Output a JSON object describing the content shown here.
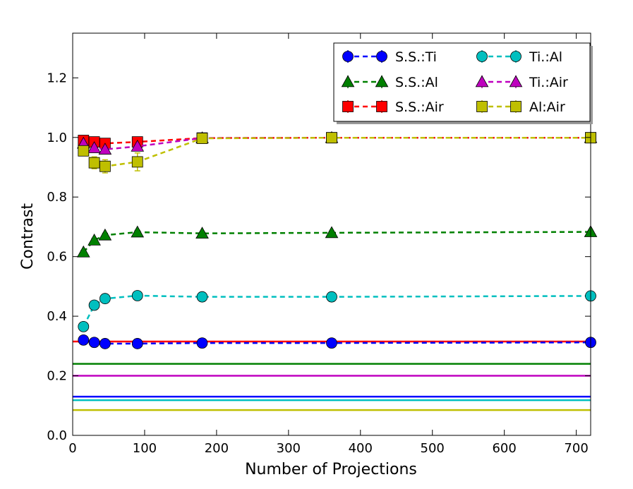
{
  "chart_data": {
    "type": "line",
    "title": "",
    "xlabel": "Number of Projections",
    "ylabel": "Contrast",
    "xlim": [
      0,
      720
    ],
    "ylim": [
      0.0,
      1.35
    ],
    "x_ticks": [
      0,
      100,
      200,
      300,
      400,
      500,
      600,
      700
    ],
    "x_tick_labels": [
      "0",
      "100",
      "200",
      "300",
      "400",
      "500",
      "600",
      "700"
    ],
    "y_ticks": [
      0.0,
      0.2,
      0.4,
      0.6,
      0.8,
      1.0,
      1.2
    ],
    "y_tick_labels": [
      "0.0",
      "0.2",
      "0.4",
      "0.6",
      "0.8",
      "1.0",
      "1.2"
    ],
    "grid": false,
    "legend_position": "top-right",
    "x": [
      15,
      30,
      45,
      90,
      180,
      360,
      720
    ],
    "series": [
      {
        "name": "S.S.:Ti",
        "color": "#0000ff",
        "marker": "circle",
        "values": [
          0.32,
          0.312,
          0.308,
          0.308,
          0.31,
          0.31,
          0.312
        ],
        "errors": [
          0.005,
          0.005,
          0.005,
          0.005,
          0.004,
          0.004,
          0.004
        ],
        "reference": 0.13
      },
      {
        "name": "S.S.:Al",
        "color": "#008000",
        "marker": "triangle",
        "values": [
          0.615,
          0.655,
          0.672,
          0.682,
          0.678,
          0.68,
          0.683
        ],
        "errors": [
          0.006,
          0.006,
          0.006,
          0.006,
          0.005,
          0.005,
          0.005
        ],
        "reference": 0.24
      },
      {
        "name": "S.S.:Air",
        "color": "#ff0000",
        "marker": "square",
        "values": [
          0.99,
          0.985,
          0.98,
          0.985,
          0.998,
          0.999,
          0.999
        ],
        "errors": [
          0.006,
          0.006,
          0.006,
          0.006,
          0.003,
          0.002,
          0.002
        ],
        "reference": 0.315
      },
      {
        "name": "Ti.:Al",
        "color": "#00bfbf",
        "marker": "circle",
        "values": [
          0.365,
          0.437,
          0.459,
          0.469,
          0.465,
          0.465,
          0.468
        ],
        "errors": [
          0.006,
          0.006,
          0.006,
          0.006,
          0.005,
          0.005,
          0.005
        ],
        "reference": 0.118
      },
      {
        "name": "Ti.:Air",
        "color": "#bf00bf",
        "marker": "triangle",
        "values": [
          0.98,
          0.965,
          0.96,
          0.97,
          0.998,
          0.999,
          0.999
        ],
        "errors": [
          0.008,
          0.008,
          0.008,
          0.008,
          0.003,
          0.002,
          0.002
        ],
        "reference": 0.2
      },
      {
        "name": "Al:Air",
        "color": "#bfbf00",
        "marker": "square",
        "values": [
          0.955,
          0.915,
          0.903,
          0.918,
          0.997,
          0.999,
          0.999
        ],
        "errors": [
          0.015,
          0.02,
          0.022,
          0.03,
          0.01,
          0.004,
          0.004
        ],
        "reference": 0.085
      }
    ]
  }
}
